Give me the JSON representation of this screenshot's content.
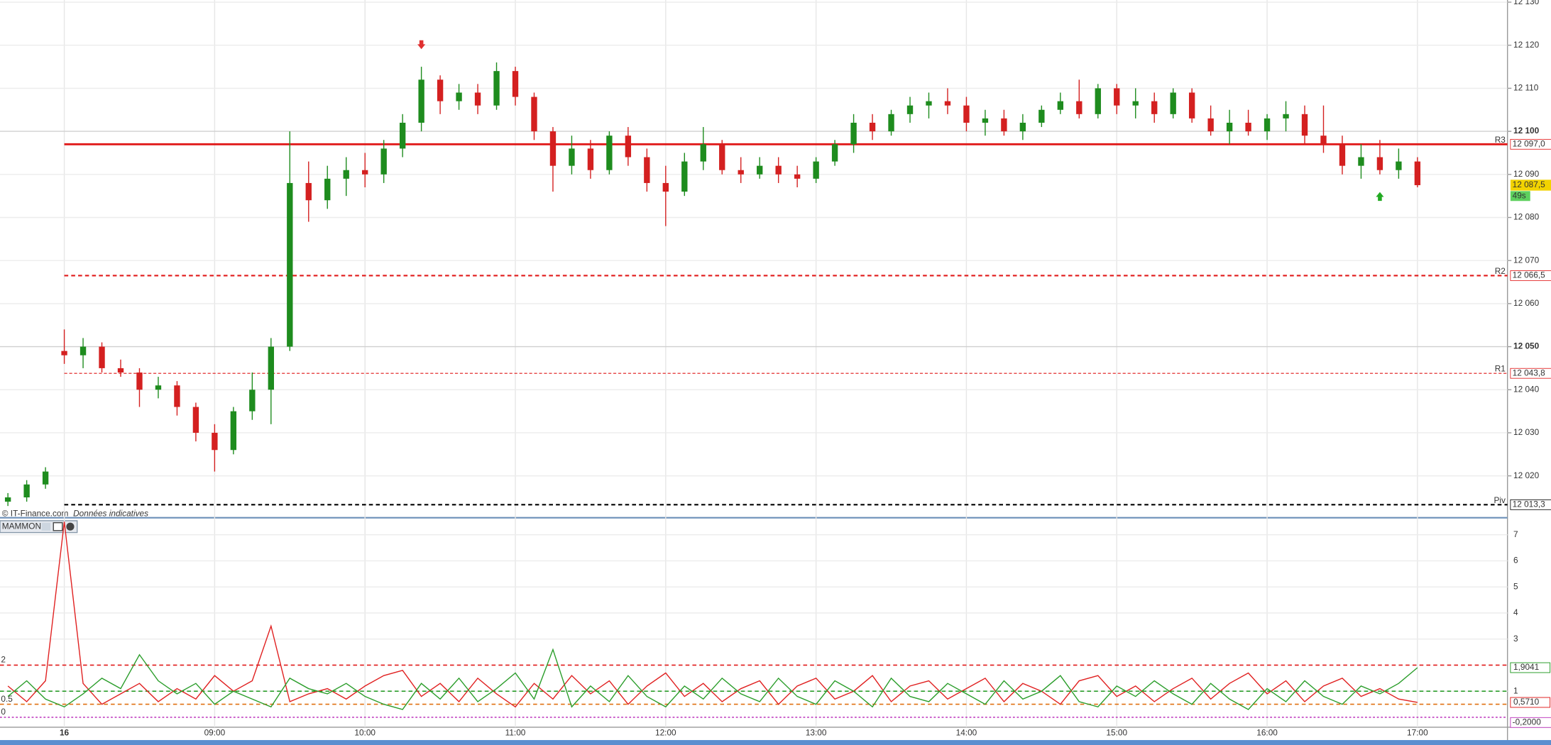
{
  "chart_data": [
    {
      "type": "candlestick",
      "source": "© IT-Finance.com",
      "note": "Données indicatives",
      "x": [
        7.625,
        7.75,
        7.875,
        8,
        8.125,
        8.25,
        8.375,
        8.5,
        8.625,
        8.75,
        8.875,
        9,
        9.125,
        9.25,
        9.375,
        9.5,
        9.625,
        9.75,
        9.875,
        10,
        10.125,
        10.25,
        10.375,
        10.5,
        10.625,
        10.75,
        10.875,
        11,
        11.125,
        11.25,
        11.375,
        11.5,
        11.625,
        11.75,
        11.875,
        12,
        12.125,
        12.25,
        12.375,
        12.5,
        12.625,
        12.75,
        12.875,
        13,
        13.125,
        13.25,
        13.375,
        13.5,
        13.625,
        13.75,
        13.875,
        14,
        14.125,
        14.25,
        14.375,
        14.5,
        14.625,
        14.75,
        14.875,
        15,
        15.125,
        15.25,
        15.375,
        15.5,
        15.625,
        15.75,
        15.875,
        16,
        16.125,
        16.25,
        16.375,
        16.5,
        16.625,
        16.75,
        16.875,
        17
      ],
      "open": [
        12014,
        12015,
        12018,
        12049,
        12048,
        12050,
        12045,
        12044,
        12040,
        12041,
        12036,
        12030,
        12026,
        12035,
        12040,
        12050,
        12088,
        12084,
        12089,
        12091,
        12090,
        12096,
        12102,
        12112,
        12107,
        12109,
        12106,
        12114,
        12108,
        12100,
        12092,
        12096,
        12091,
        12099,
        12094,
        12088,
        12086,
        12093,
        12097,
        12091,
        12090,
        12092,
        12090,
        12089,
        12093,
        12097,
        12102,
        12100,
        12104,
        12106,
        12107,
        12106,
        12102,
        12103,
        12100,
        12102,
        12105,
        12107,
        12104,
        12110,
        12106,
        12107,
        12104,
        12109,
        12103,
        12100,
        12102,
        12100,
        12103,
        12104,
        12099,
        12097,
        12092,
        12094,
        12091,
        12093
      ],
      "high": [
        12016,
        12019,
        12022,
        12054,
        12052,
        12051,
        12047,
        12045,
        12043,
        12042,
        12037,
        12032,
        12036,
        12044,
        12052,
        12100,
        12093,
        12092,
        12094,
        12095,
        12098,
        12104,
        12115,
        12113,
        12111,
        12111,
        12116,
        12115,
        12109,
        12101,
        12099,
        12098,
        12100,
        12101,
        12096,
        12092,
        12095,
        12101,
        12098,
        12094,
        12094,
        12094,
        12092,
        12094,
        12098,
        12104,
        12104,
        12105,
        12108,
        12109,
        12110,
        12108,
        12105,
        12105,
        12104,
        12106,
        12109,
        12112,
        12111,
        12111,
        12110,
        12109,
        12110,
        12110,
        12106,
        12105,
        12105,
        12104,
        12107,
        12106,
        12106,
        12099,
        12097,
        12098,
        12096,
        12094
      ],
      "low": [
        12013,
        12014,
        12017,
        12046,
        12045,
        12044,
        12043,
        12036,
        12038,
        12034,
        12028,
        12021,
        12025,
        12033,
        12032,
        12049,
        12079,
        12082,
        12085,
        12087,
        12088,
        12094,
        12100,
        12104,
        12105,
        12104,
        12105,
        12106,
        12098,
        12086,
        12090,
        12089,
        12090,
        12092,
        12086,
        12078,
        12085,
        12091,
        12090,
        12088,
        12089,
        12088,
        12087,
        12088,
        12092,
        12095,
        12098,
        12099,
        12102,
        12103,
        12104,
        12100,
        12099,
        12099,
        12098,
        12101,
        12104,
        12103,
        12103,
        12104,
        12103,
        12102,
        12103,
        12102,
        12099,
        12097,
        12099,
        12098,
        12100,
        12097,
        12095,
        12090,
        12089,
        12090,
        12089,
        12087
      ],
      "close": [
        12015,
        12018,
        12021,
        12048,
        12050,
        12045,
        12044,
        12040,
        12041,
        12036,
        12030,
        12026,
        12035,
        12040,
        12050,
        12088,
        12084,
        12089,
        12091,
        12090,
        12096,
        12102,
        12112,
        12107,
        12109,
        12106,
        12114,
        12108,
        12100,
        12092,
        12096,
        12091,
        12099,
        12094,
        12088,
        12086,
        12093,
        12097,
        12091,
        12090,
        12092,
        12090,
        12089,
        12093,
        12097,
        12102,
        12100,
        12104,
        12106,
        12107,
        12106,
        12102,
        12103,
        12100,
        12102,
        12105,
        12107,
        12104,
        12110,
        12106,
        12107,
        12104,
        12109,
        12103,
        12100,
        12102,
        12100,
        12103,
        12104,
        12099,
        12097,
        12092,
        12094,
        12091,
        12093,
        12087.5
      ],
      "up_color": "#1e8c1e",
      "down_color": "#d42020",
      "xlim": [
        7.5724,
        17.5987
      ],
      "xticks": [
        {
          "value": 8,
          "label": "16"
        },
        {
          "value": 9,
          "label": "09:00"
        },
        {
          "value": 10,
          "label": "10:00"
        },
        {
          "value": 11,
          "label": "11:00"
        },
        {
          "value": 12,
          "label": "12:00"
        },
        {
          "value": 13,
          "label": "13:00"
        },
        {
          "value": 14,
          "label": "14:00"
        },
        {
          "value": 15,
          "label": "15:00"
        },
        {
          "value": 16,
          "label": "16:00"
        },
        {
          "value": 17,
          "label": "17:00"
        }
      ],
      "ylim": [
        12010.5,
        12130.5
      ],
      "yticks": [
        {
          "value": 12020,
          "label": "12 020"
        },
        {
          "value": 12030,
          "label": "12 030"
        },
        {
          "value": 12040,
          "label": "12 040"
        },
        {
          "value": 12050,
          "label": "12 050",
          "bold": true
        },
        {
          "value": 12060,
          "label": "12 060"
        },
        {
          "value": 12070,
          "label": "12 070"
        },
        {
          "value": 12080,
          "label": "12 080"
        },
        {
          "value": 12090,
          "label": "12 090"
        },
        {
          "value": 12100,
          "label": "12 100",
          "bold": true
        },
        {
          "value": 12110,
          "label": "12 110"
        },
        {
          "value": 12120,
          "label": "12 120"
        },
        {
          "value": 12130,
          "label": "12 130"
        }
      ],
      "grid": true,
      "levels": [
        {
          "name": "R3",
          "value": 12097.0,
          "label": "12 097,0",
          "color": "#e01818",
          "style": "solid"
        },
        {
          "name": "R2",
          "value": 12066.5,
          "label": "12 066,5",
          "color": "#e01818",
          "style": "dashed"
        },
        {
          "name": "R1",
          "value": 12043.8,
          "label": "12 043,8",
          "color": "#e01818",
          "style": "thin"
        },
        {
          "name": "Piv",
          "value": 12013.3,
          "label": "12 013,3",
          "color": "#000000",
          "style": "dashed"
        }
      ],
      "last_price": {
        "value": 12087.5,
        "label": "12 087,5"
      },
      "timer": "49s",
      "markers": [
        {
          "x": 10.375,
          "y": 12120,
          "direction": "down",
          "color": "#e03030"
        },
        {
          "x": 16.75,
          "y": 12085,
          "direction": "up",
          "color": "#22aa22"
        }
      ]
    },
    {
      "type": "line",
      "title": "MAMMON",
      "x": [
        7.625,
        7.75,
        7.875,
        8,
        8.125,
        8.25,
        8.375,
        8.5,
        8.625,
        8.75,
        8.875,
        9,
        9.125,
        9.25,
        9.375,
        9.5,
        9.625,
        9.75,
        9.875,
        10,
        10.125,
        10.25,
        10.375,
        10.5,
        10.625,
        10.75,
        10.875,
        11,
        11.125,
        11.25,
        11.375,
        11.5,
        11.625,
        11.75,
        11.875,
        12,
        12.125,
        12.25,
        12.375,
        12.5,
        12.625,
        12.75,
        12.875,
        13,
        13.125,
        13.25,
        13.375,
        13.5,
        13.625,
        13.75,
        13.875,
        14,
        14.125,
        14.25,
        14.375,
        14.5,
        14.625,
        14.75,
        14.875,
        15,
        15.125,
        15.25,
        15.375,
        15.5,
        15.625,
        15.75,
        15.875,
        16,
        16.125,
        16.25,
        16.375,
        16.5,
        16.625,
        16.75,
        16.875,
        17
      ],
      "series": [
        {
          "color": "#e02020",
          "values": [
            1.2,
            0.6,
            1.4,
            7.5,
            1.3,
            0.5,
            0.9,
            1.3,
            0.6,
            1.1,
            0.7,
            1.6,
            1.0,
            1.4,
            3.5,
            0.6,
            0.9,
            1.1,
            0.7,
            1.2,
            1.6,
            1.8,
            0.8,
            1.3,
            0.6,
            1.5,
            0.9,
            0.4,
            1.3,
            0.7,
            1.6,
            0.9,
            1.4,
            0.5,
            1.2,
            1.7,
            0.8,
            1.3,
            0.6,
            1.1,
            1.4,
            0.5,
            1.2,
            1.5,
            0.7,
            1.0,
            1.6,
            0.6,
            1.2,
            1.4,
            0.7,
            1.1,
            1.5,
            0.6,
            1.3,
            1.0,
            0.5,
            1.4,
            1.6,
            0.8,
            1.2,
            0.6,
            1.1,
            1.5,
            0.7,
            1.3,
            1.7,
            0.9,
            1.4,
            0.6,
            1.2,
            1.5,
            0.8,
            1.1,
            0.7,
            0.571
          ],
          "last_label": "0,5710"
        },
        {
          "color": "#2a9d2a",
          "values": [
            0.8,
            1.4,
            0.7,
            0.4,
            0.9,
            1.5,
            1.1,
            2.4,
            1.4,
            0.9,
            1.3,
            0.5,
            1.0,
            0.7,
            0.4,
            1.5,
            1.1,
            0.9,
            1.3,
            0.8,
            0.5,
            0.3,
            1.3,
            0.7,
            1.5,
            0.6,
            1.1,
            1.7,
            0.7,
            2.6,
            0.4,
            1.2,
            0.6,
            1.6,
            0.8,
            0.4,
            1.2,
            0.7,
            1.5,
            0.9,
            0.6,
            1.5,
            0.8,
            0.5,
            1.4,
            1.0,
            0.4,
            1.5,
            0.8,
            0.6,
            1.3,
            0.9,
            0.5,
            1.4,
            0.7,
            1.0,
            1.6,
            0.6,
            0.4,
            1.2,
            0.8,
            1.4,
            0.9,
            0.5,
            1.3,
            0.7,
            0.3,
            1.1,
            0.6,
            1.4,
            0.8,
            0.5,
            1.2,
            0.9,
            1.3,
            1.9041
          ],
          "last_label": "1,9041"
        }
      ],
      "signal": {
        "value": -0.2,
        "label": "-0,2000",
        "color": "#c040c0"
      },
      "ylim": [
        -0.38,
        7.54
      ],
      "yticks": [
        1,
        3,
        4,
        5,
        6,
        7
      ],
      "left_ticks": [
        0,
        0.5,
        2
      ],
      "levels": [
        {
          "value": 2,
          "color": "#e01818"
        },
        {
          "value": 1,
          "color": "#2a9d2a"
        },
        {
          "value": 0.5,
          "color": "#e07010"
        },
        {
          "value": 0,
          "color": "#c040c0"
        }
      ]
    }
  ]
}
